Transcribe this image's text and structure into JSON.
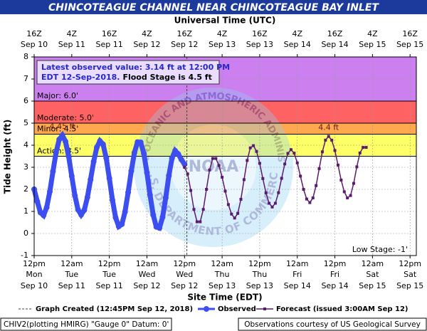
{
  "chart_data": {
    "type": "line",
    "title": "CHINCOTEAGUE CHANNEL NEAR CHINCOTEAGUE BAY INLET",
    "top_axis_label": "Universal Time (UTC)",
    "xlabel": "Site Time (EDT)",
    "ylabel": "Tide Height (ft)",
    "xlim": [
      0,
      122
    ],
    "ylim": [
      -1,
      8
    ],
    "yticks": [
      -1,
      0,
      1,
      2,
      3,
      4,
      5,
      6,
      7,
      8
    ],
    "grid": true,
    "xticks": [
      {
        "value": 0,
        "label": "12pm"
      },
      {
        "value": 12,
        "label": "12am"
      },
      {
        "value": 24,
        "label": "12pm"
      },
      {
        "value": 36,
        "label": "12am"
      },
      {
        "value": 48,
        "label": "12pm"
      },
      {
        "value": 60,
        "label": "12am"
      },
      {
        "value": 72,
        "label": "12pm"
      },
      {
        "value": 84,
        "label": "12am"
      },
      {
        "value": 96,
        "label": "12pm"
      },
      {
        "value": 108,
        "label": "12am"
      },
      {
        "value": 120,
        "label": "12pm"
      }
    ],
    "xtick_days": [
      "Mon",
      "Tue",
      "Tue",
      "Wed",
      "Wed",
      "Thu",
      "Thu",
      "Fri",
      "Fri",
      "Sat",
      "Sat"
    ],
    "xtick_dates": [
      "Sep 10",
      "Sep 11",
      "Sep 11",
      "Sep 12",
      "Sep 12",
      "Sep 13",
      "Sep 13",
      "Sep 14",
      "Sep 14",
      "Sep 15",
      "Sep 15"
    ],
    "x2ticks": [
      {
        "value": 0,
        "label": "16Z"
      },
      {
        "value": 12,
        "label": "4Z"
      },
      {
        "value": 24,
        "label": "16Z"
      },
      {
        "value": 36,
        "label": "4Z"
      },
      {
        "value": 48,
        "label": "16Z"
      },
      {
        "value": 60,
        "label": "4Z"
      },
      {
        "value": 72,
        "label": "16Z"
      },
      {
        "value": 84,
        "label": "4Z"
      },
      {
        "value": 96,
        "label": "16Z"
      },
      {
        "value": 108,
        "label": "4Z"
      },
      {
        "value": 120,
        "label": "16Z"
      }
    ],
    "x2tick_dates": [
      "Sep 10",
      "Sep 11",
      "Sep 11",
      "Sep 12",
      "Sep 12",
      "Sep 13",
      "Sep 13",
      "Sep 14",
      "Sep 14",
      "Sep 15",
      "Sep 15"
    ],
    "stages": [
      {
        "label": "Major: 6.0'",
        "value": 6,
        "color": "#cc80f0"
      },
      {
        "label": "Moderate: 5.0'",
        "value": 5,
        "color": "#ff6262"
      },
      {
        "label": "Minor: 4.5'",
        "value": 4.5,
        "color": "#ffa850"
      },
      {
        "label": "Action: 3.5'",
        "value": 3.5,
        "color": "#ffff66"
      }
    ],
    "low_stage_label": "Low Stage: -1'",
    "info": {
      "line1": "Latest observed value: 3.14 ft at 12:00 PM",
      "line2a": "EDT 12-Sep-2018.",
      "line2b": "Flood Stage is 4.5 ft"
    },
    "annotations": [
      {
        "text": "4.45 ft",
        "x": 9,
        "y": 4.45
      },
      {
        "text": "4.4 ft",
        "x": 94,
        "y": 4.4
      }
    ],
    "created": {
      "label": "Graph Created (12:45PM Sep 12, 2018)",
      "x": 48.75
    },
    "watermark": {
      "center": "NOAA",
      "top": "NATIONAL OCEANIC AND ATMOSPHERIC ADMINISTRATION",
      "bottom": "U.S. DEPARTMENT OF COMMERCE"
    },
    "series": [
      {
        "name": "Observed",
        "color": "#3d4ef0",
        "x": [
          0,
          1,
          2,
          3,
          4,
          5,
          6,
          7,
          8,
          9,
          10,
          11,
          12,
          13,
          14,
          15,
          16,
          17,
          18,
          19,
          20,
          21,
          22,
          23,
          24,
          25,
          26,
          27,
          28,
          29,
          30,
          31,
          32,
          33,
          34,
          35,
          36,
          37,
          38,
          39,
          40,
          41,
          42,
          43,
          44,
          45,
          46,
          47,
          48
        ],
        "values": [
          2.0,
          1.45,
          0.95,
          0.82,
          1.18,
          1.9,
          2.81,
          3.67,
          4.26,
          4.45,
          4.17,
          3.5,
          2.6,
          1.72,
          1.08,
          0.85,
          1.06,
          1.64,
          2.44,
          3.26,
          3.9,
          4.19,
          4.04,
          3.42,
          2.5,
          1.51,
          0.72,
          0.32,
          0.42,
          0.98,
          1.86,
          2.83,
          3.66,
          4.14,
          4.13,
          3.63,
          2.76,
          1.74,
          0.84,
          0.3,
          0.25,
          0.74,
          1.62,
          2.62,
          3.41,
          3.75,
          3.6,
          3.35,
          3.14
        ]
      },
      {
        "name": "Forecast (issued 3:00AM Sep 12)",
        "color": "#5a1a6e",
        "x": [
          48,
          49,
          50,
          51,
          52,
          53,
          54,
          55,
          56,
          57,
          58,
          59,
          60,
          61,
          62,
          63,
          64,
          65,
          66,
          67,
          68,
          69,
          70,
          71,
          72,
          73,
          74,
          75,
          76,
          77,
          78,
          79,
          80,
          81,
          82,
          83,
          84,
          85,
          86,
          87,
          88,
          89,
          90,
          91,
          92,
          93,
          94,
          95,
          96,
          97,
          98,
          99,
          100,
          101,
          102,
          103,
          104,
          105,
          106
        ],
        "values": [
          3.0,
          2.7,
          1.95,
          1.09,
          0.53,
          0.53,
          1.09,
          2.0,
          2.88,
          3.4,
          3.4,
          3.08,
          2.55,
          1.92,
          1.31,
          0.88,
          0.7,
          0.91,
          1.55,
          2.44,
          3.31,
          3.88,
          3.98,
          3.72,
          3.18,
          2.49,
          1.84,
          1.37,
          1.2,
          1.37,
          1.85,
          2.5,
          3.15,
          3.63,
          3.8,
          3.64,
          3.2,
          2.6,
          2.0,
          1.56,
          1.4,
          1.61,
          2.17,
          2.94,
          3.7,
          4.23,
          4.4,
          4.23,
          3.76,
          3.1,
          2.42,
          1.89,
          1.61,
          1.72,
          2.27,
          3.02,
          3.65,
          3.9,
          3.9
        ]
      }
    ],
    "footer_left": "CHIV2(plotting HMIRG) \"Gauge 0\" Datum: 0'",
    "footer_right": "Observations courtesy of US Geological Survey"
  }
}
